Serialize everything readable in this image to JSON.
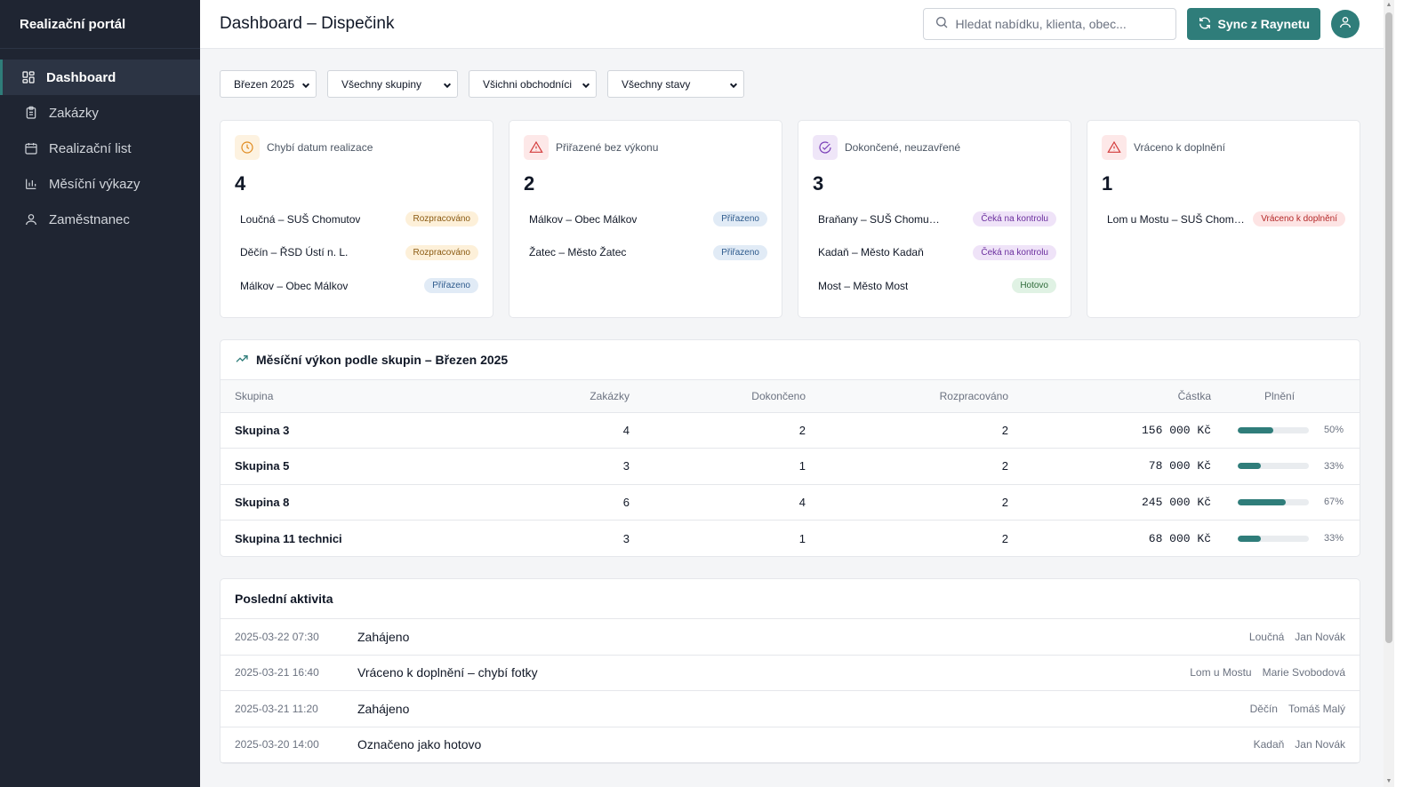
{
  "sidebar": {
    "brand": "Realizační portál",
    "items": [
      {
        "label": "Dashboard",
        "icon": "dashboard-icon",
        "active": true
      },
      {
        "label": "Zakázky",
        "icon": "clipboard-icon"
      },
      {
        "label": "Realizační list",
        "icon": "calendar-icon"
      },
      {
        "label": "Měsíční výkazy",
        "icon": "bar-chart-icon"
      },
      {
        "label": "Zaměstnanec",
        "icon": "user-icon"
      }
    ]
  },
  "header": {
    "title": "Dashboard – Dispečink",
    "search_placeholder": "Hledat nabídku, klienta, obec...",
    "sync_label": "Sync z Raynetu"
  },
  "filters": {
    "month": "Březen 2025",
    "group": "Všechny skupiny",
    "sales": "Všichni obchodníci",
    "state": "Všechny stavy"
  },
  "colors": {
    "accent": "#2f7d7a",
    "sidebar_bg": "#1f2532"
  },
  "cards": [
    {
      "title": "Chybí datum realizace",
      "icon": "clock-icon",
      "count": "4",
      "rows": [
        {
          "text": "Loučná – SUŠ Chomutov",
          "badge": "Rozpracováno",
          "kind": "progress"
        },
        {
          "text": "Děčín – ŘSD Ústí n. L.",
          "badge": "Rozpracováno",
          "kind": "progress"
        },
        {
          "text": "Málkov – Obec Málkov",
          "badge": "Přiřazeno",
          "kind": "assigned"
        }
      ]
    },
    {
      "title": "Přiřazené bez výkonu",
      "icon": "warning-icon",
      "count": "2",
      "rows": [
        {
          "text": "Málkov – Obec Málkov",
          "badge": "Přiřazeno",
          "kind": "assigned"
        },
        {
          "text": "Žatec – Město Žatec",
          "badge": "Přiřazeno",
          "kind": "assigned"
        }
      ]
    },
    {
      "title": "Dokončené, neuzavřené",
      "icon": "check-circle-icon",
      "count": "3",
      "rows": [
        {
          "text": "Braňany – SUŠ Chomutov",
          "badge": "Čeká na kontrolu",
          "kind": "review"
        },
        {
          "text": "Kadaň – Město Kadaň",
          "badge": "Čeká na kontrolu",
          "kind": "review"
        },
        {
          "text": "Most – Město Most",
          "badge": "Hotovo",
          "kind": "done"
        }
      ]
    },
    {
      "title": "Vráceno k doplnění",
      "icon": "warning-icon",
      "count": "1",
      "rows": [
        {
          "text": "Lom u Mostu – SUŠ Chomutov",
          "badge": "Vráceno k doplnění",
          "kind": "returned"
        }
      ]
    }
  ],
  "performance": {
    "title": "Měsíční výkon podle skupin – Březen 2025",
    "columns": [
      "Skupina",
      "Zakázky",
      "Dokončeno",
      "Rozpracováno",
      "Částka",
      "Plnění"
    ],
    "rows": [
      {
        "group": "Skupina 3",
        "orders": "4",
        "done": "2",
        "in_progress": "2",
        "amount": "156 000 Kč",
        "fulfil": 50,
        "fulfil_label": "50%"
      },
      {
        "group": "Skupina 5",
        "orders": "3",
        "done": "1",
        "in_progress": "2",
        "amount": "78 000 Kč",
        "fulfil": 33,
        "fulfil_label": "33%"
      },
      {
        "group": "Skupina 8",
        "orders": "6",
        "done": "4",
        "in_progress": "2",
        "amount": "245 000 Kč",
        "fulfil": 67,
        "fulfil_label": "67%"
      },
      {
        "group": "Skupina 11 technici",
        "orders": "3",
        "done": "1",
        "in_progress": "2",
        "amount": "68 000 Kč",
        "fulfil": 33,
        "fulfil_label": "33%"
      }
    ]
  },
  "activity": {
    "title": "Poslední aktivita",
    "rows": [
      {
        "time": "2025-03-22 07:30",
        "text": "Zahájeno",
        "place": "Loučná",
        "user": "Jan Novák"
      },
      {
        "time": "2025-03-21 16:40",
        "text": "Vráceno k doplnění – chybí fotky",
        "place": "Lom u Mostu",
        "user": "Marie Svobodová"
      },
      {
        "time": "2025-03-21 11:20",
        "text": "Zahájeno",
        "place": "Děčín",
        "user": "Tomáš Malý"
      },
      {
        "time": "2025-03-20 14:00",
        "text": "Označeno jako hotovo",
        "place": "Kadaň",
        "user": "Jan Novák"
      }
    ]
  }
}
